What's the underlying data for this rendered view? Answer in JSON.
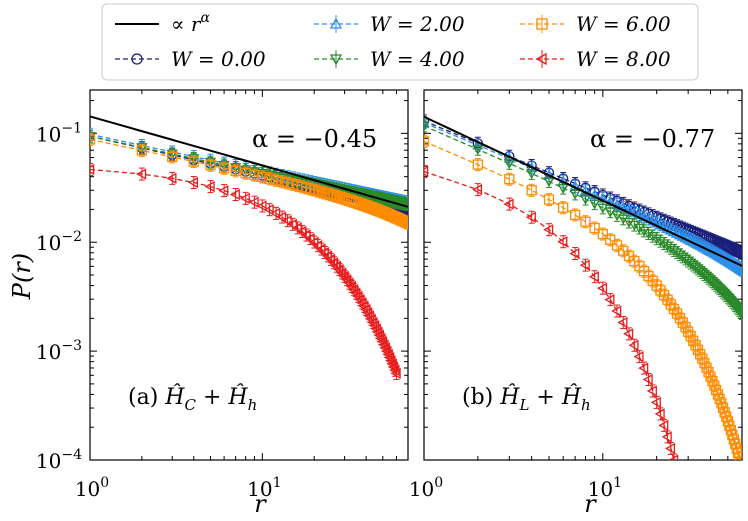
{
  "chart_data": {
    "type": "line",
    "ylabel": "P(r)",
    "xlabel": "r",
    "xscale": "log",
    "yscale": "log",
    "legend": {
      "placement": "top",
      "entries": [
        {
          "label": "∝ r^α",
          "kind": "fit",
          "color": "#000000"
        },
        {
          "label": "W = 0.00",
          "marker": "circle",
          "color": "#1b1f7a"
        },
        {
          "label": "W = 2.00",
          "marker": "triangle-up",
          "color": "#2f8fe8"
        },
        {
          "label": "W = 4.00",
          "marker": "triangle-down",
          "color": "#2a8a2a"
        },
        {
          "label": "W = 6.00",
          "marker": "square",
          "color": "#ff8c00"
        },
        {
          "label": "W = 8.00",
          "marker": "triangle-left",
          "color": "#e81c1c"
        }
      ]
    },
    "panels": [
      {
        "id": "a",
        "label": "(a) Ĥ_C + Ĥ_h",
        "label_parts": {
          "prefix": "(a)",
          "first": "Ĥ",
          "first_sub": "C",
          "op": "+",
          "second": "Ĥ",
          "second_sub": "h"
        },
        "annotation": "α = −0.45",
        "alpha": -0.45,
        "xlim": [
          1,
          70
        ],
        "ylim": [
          0.0001,
          0.25
        ],
        "x_tick_labels": [
          "10⁰",
          "10¹"
        ],
        "y_tick_labels": [
          "10⁻⁴",
          "10⁻³",
          "10⁻²",
          "10⁻¹"
        ],
        "fit": {
          "prefactor": 0.143,
          "alpha": -0.45
        },
        "series": [
          {
            "name": "W = 0.00",
            "p0": 0.094,
            "alpha": -0.36,
            "cutoff": 0,
            "gamma": 1,
            "n": 70
          },
          {
            "name": "W = 2.00",
            "p0": 0.098,
            "alpha": -0.34,
            "cutoff": 0,
            "gamma": 1,
            "n": 70
          },
          {
            "name": "W = 4.00",
            "p0": 0.094,
            "alpha": -0.34,
            "cutoff": 0,
            "gamma": 1,
            "n": 70
          },
          {
            "name": "W = 6.00",
            "p0": 0.088,
            "alpha": -0.33,
            "cutoff": 160,
            "gamma": 1.2,
            "n": 70
          },
          {
            "name": "W = 8.00",
            "p0": 0.052,
            "alpha": 0.0,
            "cutoff": 11.5,
            "gamma": 0.9,
            "n": 60
          }
        ]
      },
      {
        "id": "b",
        "label": "(b) Ĥ_L + Ĥ_h",
        "label_parts": {
          "prefix": "(b)",
          "first": "Ĥ",
          "first_sub": "L",
          "op": "+",
          "second": "Ĥ",
          "second_sub": "h"
        },
        "annotation": "α = −0.77",
        "alpha": -0.77,
        "xlim": [
          1,
          60
        ],
        "ylim": [
          0.0001,
          0.25
        ],
        "x_tick_labels": [
          "10⁰",
          "10¹"
        ],
        "y_tick_labels": [
          "10⁻⁴",
          "10⁻³",
          "10⁻²",
          "10⁻¹"
        ],
        "fit": {
          "prefactor": 0.142,
          "alpha": -0.77
        },
        "series": [
          {
            "name": "W = 0.00",
            "p0": 0.13,
            "alpha": -0.68,
            "cutoff": 0,
            "gamma": 1,
            "n": 60
          },
          {
            "name": "W = 2.00",
            "p0": 0.125,
            "alpha": -0.68,
            "cutoff": 140,
            "gamma": 1.3,
            "n": 60
          },
          {
            "name": "W = 4.00",
            "p0": 0.118,
            "alpha": -0.7,
            "cutoff": 55,
            "gamma": 1.2,
            "n": 60
          },
          {
            "name": "W = 6.00",
            "p0": 0.087,
            "alpha": -0.65,
            "cutoff": 18,
            "gamma": 1.2,
            "n": 60
          },
          {
            "name": "W = 8.00",
            "p0": 0.052,
            "alpha": -0.3,
            "cutoff": 5.5,
            "gamma": 1.1,
            "n": 28
          }
        ]
      }
    ]
  }
}
